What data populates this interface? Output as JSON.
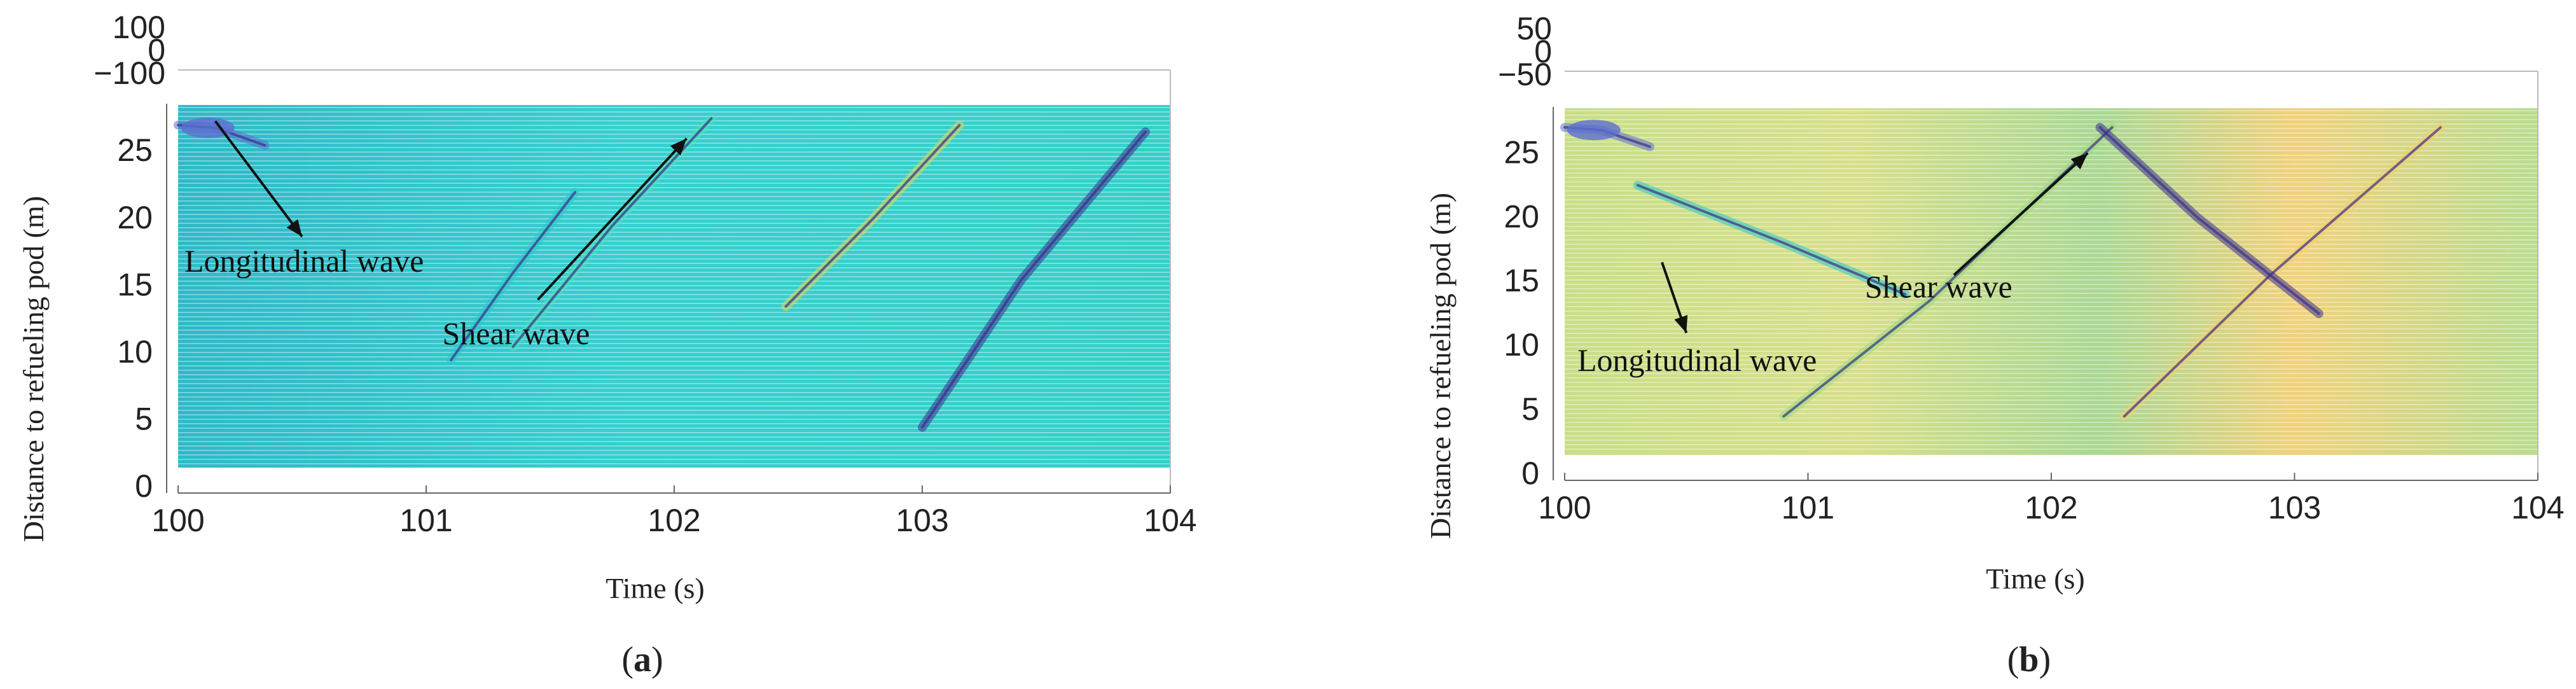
{
  "figure": {
    "panels": [
      {
        "caption_prefix": "(",
        "caption_letter": "a",
        "caption_suffix": ")"
      },
      {
        "caption_prefix": "(",
        "caption_letter": "b",
        "caption_suffix": ")"
      }
    ]
  },
  "chart_data": [
    {
      "type": "waterfall",
      "panel": "a",
      "xlabel": "Time (s)",
      "ylabel": "Distance to refueling pod (m)",
      "xlim": [
        100,
        104
      ],
      "ylim": [
        0,
        27
      ],
      "x_ticks": [
        100,
        101,
        102,
        103,
        104
      ],
      "y_ticks": [
        0,
        5,
        10,
        15,
        20,
        25
      ],
      "z_ticks": [
        "100",
        "0",
        "−100"
      ],
      "colormap": [
        "#3a2e8c",
        "#5c6ed0",
        "#2cc7c6",
        "#4fe3b8",
        "#e7d84a"
      ],
      "base_color": "#33cdd0",
      "grid": false,
      "annotations": [
        {
          "text": "Longitudinal wave",
          "arrow_from": [
            100.15,
            25.8
          ],
          "arrow_to": [
            100.5,
            17.2
          ]
        },
        {
          "text": "Shear wave",
          "arrow_from": [
            101.45,
            12.5
          ],
          "arrow_to": [
            102.05,
            24.5
          ]
        }
      ],
      "wavefronts": [
        {
          "name": "",
          "x": [
            100.0,
            100.15,
            100.35
          ],
          "y": [
            25.5,
            25.3,
            24.0
          ]
        },
        {
          "name": "",
          "x": [
            101.1,
            101.35,
            101.6
          ],
          "y": [
            8.0,
            14.5,
            20.5
          ]
        },
        {
          "name": "",
          "x": [
            101.35,
            101.75,
            102.15
          ],
          "y": [
            9.0,
            18.0,
            26.0
          ]
        },
        {
          "name": "",
          "x": [
            102.45,
            102.8,
            103.15
          ],
          "y": [
            12.0,
            18.5,
            25.5
          ]
        },
        {
          "name": "",
          "x": [
            103.0,
            103.4,
            103.9
          ],
          "y": [
            3.0,
            14.0,
            25.0
          ]
        }
      ]
    },
    {
      "type": "waterfall",
      "panel": "b",
      "xlabel": "Time (s)",
      "ylabel": "Distance to refueling pod (m)",
      "xlim": [
        100,
        104
      ],
      "ylim": [
        0,
        27
      ],
      "x_ticks": [
        100,
        101,
        102,
        103,
        104
      ],
      "y_ticks": [
        0,
        5,
        10,
        15,
        20,
        25
      ],
      "z_ticks": [
        "50",
        "0",
        "−50"
      ],
      "colormap": [
        "#3a2e8c",
        "#5c6ed0",
        "#2cc7c6",
        "#9ad87a",
        "#f2cf6a"
      ],
      "base_color": "#b9dc86",
      "grid": false,
      "annotations": [
        {
          "text": "Shear wave",
          "arrow_from": [
            101.6,
            14.0
          ],
          "arrow_to": [
            102.15,
            23.5
          ]
        },
        {
          "text": "Longitudinal wave",
          "arrow_from": [
            100.4,
            15.0
          ],
          "arrow_to": [
            100.5,
            9.5
          ]
        }
      ],
      "wavefronts": [
        {
          "name": "",
          "x": [
            100.0,
            100.15,
            100.35
          ],
          "y": [
            25.5,
            25.3,
            24.0
          ]
        },
        {
          "name": "",
          "x": [
            100.3,
            100.9,
            101.4
          ],
          "y": [
            21.0,
            16.5,
            12.5
          ]
        },
        {
          "name": "",
          "x": [
            100.9,
            101.5,
            102.25
          ],
          "y": [
            3.0,
            12.0,
            25.5
          ]
        },
        {
          "name": "",
          "x": [
            102.3,
            102.9,
            103.6
          ],
          "y": [
            3.0,
            14.0,
            25.5
          ]
        },
        {
          "name": "",
          "x": [
            102.2,
            102.6,
            103.1
          ],
          "y": [
            25.5,
            18.5,
            11.0
          ]
        }
      ]
    }
  ]
}
